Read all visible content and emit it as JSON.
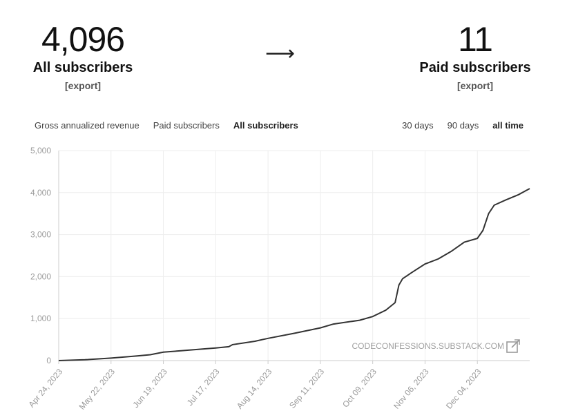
{
  "header": {
    "all_count": "4,096",
    "all_label": "All subscribers",
    "all_export": "[export]",
    "arrow": "⟶",
    "paid_count": "11",
    "paid_label": "Paid subscribers",
    "paid_export": "[export]"
  },
  "metric_tabs": [
    {
      "label": "Gross annualized revenue",
      "active": false
    },
    {
      "label": "Paid subscribers",
      "active": false
    },
    {
      "label": "All subscribers",
      "active": true
    }
  ],
  "range_tabs": [
    {
      "label": "30 days",
      "active": false
    },
    {
      "label": "90 days",
      "active": false
    },
    {
      "label": "all time",
      "active": true
    }
  ],
  "watermark": "CODECONFESSIONS.SUBSTACK.COM",
  "colors": {
    "line": "#333333",
    "grid": "#eeeeee",
    "axis": "#cccccc"
  },
  "chart_data": {
    "type": "line",
    "title": "",
    "xlabel": "",
    "ylabel": "",
    "ylim": [
      0,
      5000
    ],
    "yticks": [
      "0",
      "1,000",
      "2,000",
      "3,000",
      "4,000",
      "5,000"
    ],
    "xticks": [
      "Apr 24, 2023",
      "May 22, 2023",
      "Jun 19, 2023",
      "Jul 17, 2023",
      "Aug 14, 2023",
      "Sep 11, 2023",
      "Oct 09, 2023",
      "Nov 06, 2023",
      "Dec 04, 2023"
    ],
    "grid": true,
    "series": [
      {
        "x": [
          "2023-04-24",
          "2023-05-08",
          "2023-05-22",
          "2023-06-05",
          "2023-06-12",
          "2023-06-19",
          "2023-07-03",
          "2023-07-17",
          "2023-07-24",
          "2023-07-26",
          "2023-08-07",
          "2023-08-14",
          "2023-08-28",
          "2023-09-11",
          "2023-09-18",
          "2023-10-02",
          "2023-10-09",
          "2023-10-16",
          "2023-10-21",
          "2023-10-23",
          "2023-10-25",
          "2023-10-30",
          "2023-11-06",
          "2023-11-13",
          "2023-11-20",
          "2023-11-27",
          "2023-12-04",
          "2023-12-07",
          "2023-12-10",
          "2023-12-13",
          "2023-12-19",
          "2023-12-26",
          "2024-01-01"
        ],
        "y": [
          0,
          20,
          60,
          110,
          140,
          200,
          250,
          300,
          330,
          380,
          460,
          530,
          650,
          780,
          870,
          960,
          1050,
          1200,
          1380,
          1800,
          1950,
          2100,
          2300,
          2420,
          2600,
          2820,
          2910,
          3100,
          3500,
          3700,
          3820,
          3950,
          4096
        ]
      }
    ]
  }
}
